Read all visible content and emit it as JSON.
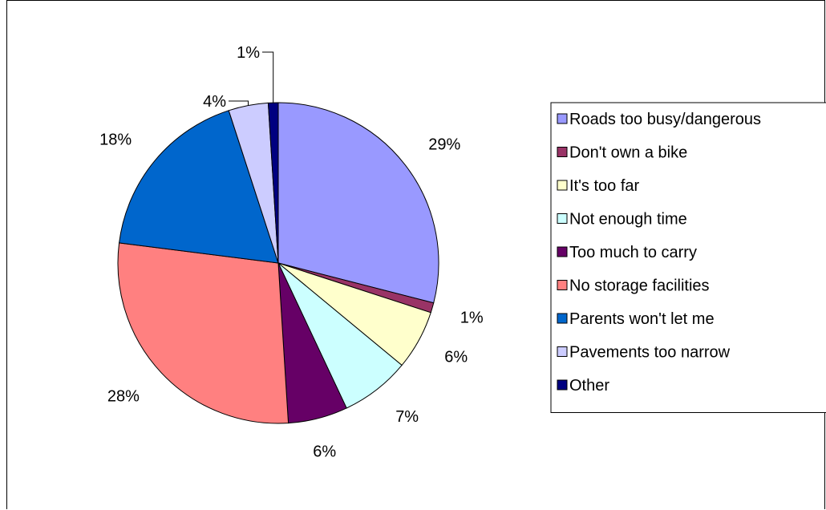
{
  "chart_data": {
    "type": "pie",
    "title": "",
    "slices": [
      {
        "label": "Roads too busy/dangerous",
        "value": 29,
        "display": "29%",
        "color": "#9999FF"
      },
      {
        "label": "Don't own a bike",
        "value": 1,
        "display": "1%",
        "color": "#993366"
      },
      {
        "label": "It's too far",
        "value": 6,
        "display": "6%",
        "color": "#FFFFCC"
      },
      {
        "label": "Not enough time",
        "value": 7,
        "display": "7%",
        "color": "#CCFFFF"
      },
      {
        "label": "Too much to carry",
        "value": 6,
        "display": "6%",
        "color": "#660066"
      },
      {
        "label": "No storage facilities",
        "value": 28,
        "display": "28%",
        "color": "#FF8080"
      },
      {
        "label": "Parents won't let me",
        "value": 18,
        "display": "18%",
        "color": "#0066CC"
      },
      {
        "label": "Pavements too narrow",
        "value": 4,
        "display": "4%",
        "color": "#CCCCFF"
      },
      {
        "label": "Other",
        "value": 1,
        "display": "1%",
        "color": "#000080"
      }
    ],
    "legend_position": "right"
  }
}
